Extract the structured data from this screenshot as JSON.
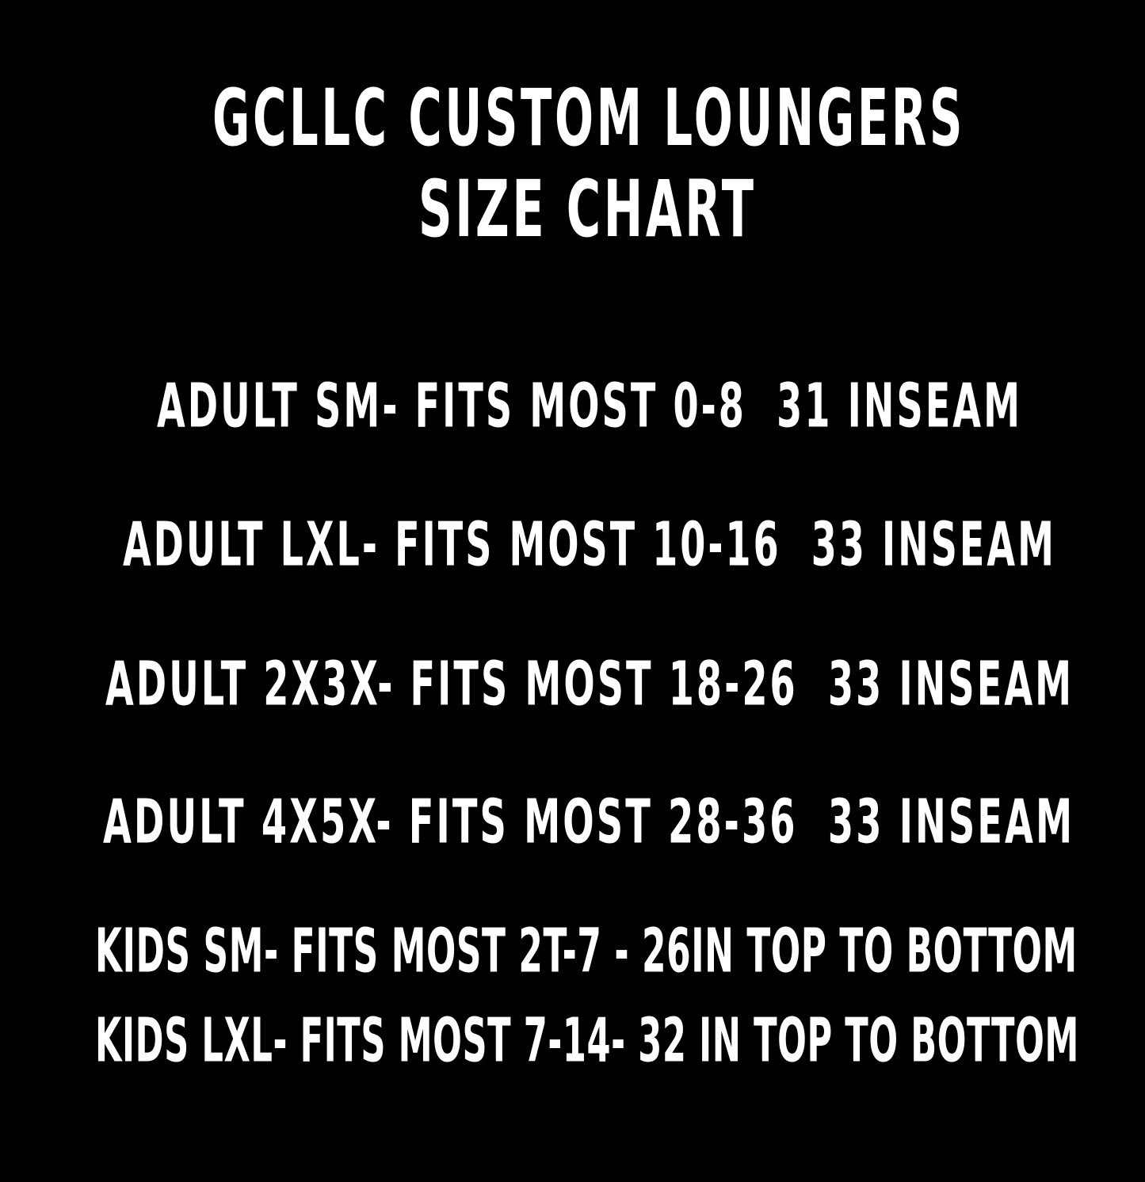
{
  "title": {
    "line1": "GCLLC CUSTOM LOUNGERS",
    "line2": "SIZE CHART"
  },
  "rows": [
    "ADULT SM- FITS MOST 0-8  31 INSEAM",
    "ADULT LXL- FITS MOST 10-16  33 INSEAM",
    "ADULT 2X3X- FITS MOST 18-26  33 INSEAM",
    "ADULT 4X5X- FITS MOST 28-36  33 INSEAM",
    "KIDS SM- FITS MOST 2T-7 - 26IN TOP TO BOTTOM",
    "KIDS LXL- FITS MOST 7-14- 32 IN TOP TO BOTTOM"
  ],
  "colors": {
    "background": "#000000",
    "text": "#ffffff"
  }
}
